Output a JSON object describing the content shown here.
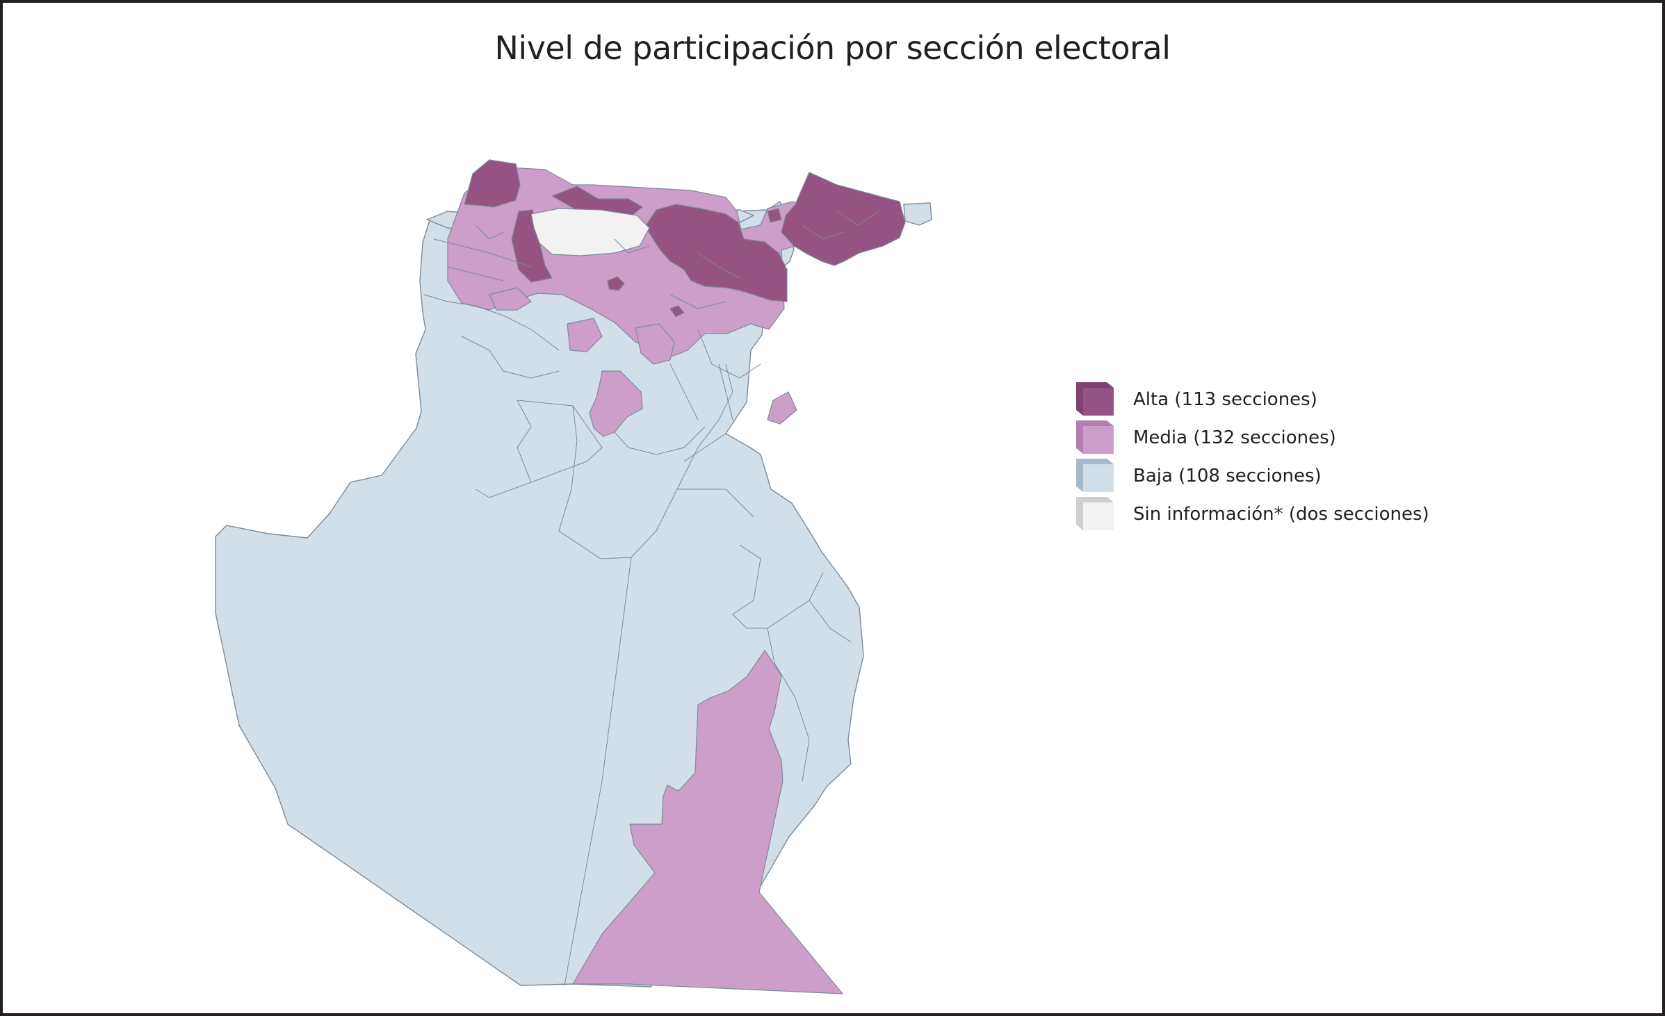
{
  "title": "Nivel de participación por sección electoral",
  "colors": {
    "alta": "#955383",
    "media": "#cc9ec9",
    "baja": "#d2dfe9",
    "sin_info": "#f2f2f2",
    "border": "#7d8a97"
  },
  "legend": [
    {
      "label": "Alta (113 secciones)",
      "face": "#955383",
      "side": "#7e4170"
    },
    {
      "label": "Media (132 secciones)",
      "face": "#cc9ec9",
      "side": "#b07fb0"
    },
    {
      "label": "Baja (108 secciones)",
      "face": "#d2dfe9",
      "side": "#a4b9c9"
    },
    {
      "label": "Sin información* (dos secciones)",
      "face": "#f2f2f2",
      "side": "#cfcfcf"
    }
  ]
}
